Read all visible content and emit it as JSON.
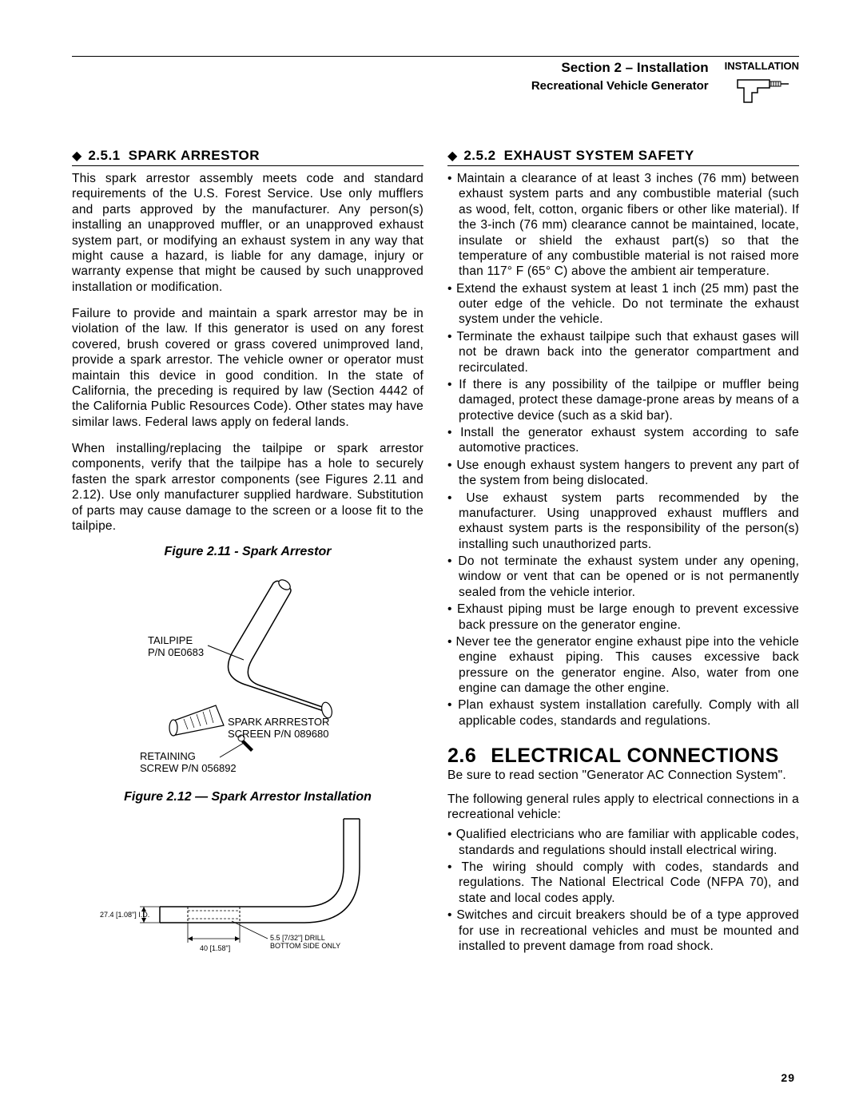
{
  "header": {
    "section": "Section 2 – Installation",
    "subtitle": "Recreational Vehicle Generator",
    "icon_label": "INSTALLATION"
  },
  "left": {
    "sub1_num": "2.5.1",
    "sub1_title": "SPARK ARRESTOR",
    "p1": "This spark arrestor assembly meets code and standard requirements of the U.S. Forest Service. Use only mufflers and parts approved by the manufacturer. Any person(s) installing an unapproved muffler, or an unapproved exhaust system part, or modifying an exhaust system in any way that might cause a hazard, is liable for any damage, injury or warranty expense that might be caused by such unapproved installation or modification.",
    "p2": "Failure to provide and maintain a spark arrestor may be in violation of the law. If this generator is used on any forest covered, brush covered or grass covered unimproved land, provide a spark arrestor. The vehicle owner or operator must maintain this device in good condition. In the state of California, the preceding is required by law (Section 4442 of the California Public Resources Code). Other states may have similar laws. Federal laws apply on federal lands.",
    "p3": "When installing/replacing the tailpipe or spark arrestor components, verify that the tailpipe has a hole to securely fasten the spark arrestor components (see Figures 2.11 and 2.12). Use only manufacturer supplied hardware. Substitution of parts may cause damage to the screen or a loose fit to the tailpipe.",
    "fig1_caption": "Figure 2.11 - Spark Arrestor",
    "fig1_labels": {
      "tailpipe": "TAILPIPE",
      "tailpipe_pn": "P/N 0E0683",
      "arrestor": "SPARK ARRRESTOR",
      "arrestor_pn": "SCREEN P/N 089680",
      "screw": "RETAINING",
      "screw_pn": "SCREW P/N 056892"
    },
    "fig2_caption": "Figure 2.12 — Spark Arrestor Installation",
    "fig2_labels": {
      "id": "27.4 [1.08\"] I.D.",
      "len": "40 [1.58\"]",
      "drill": "5.5 [7/32\"] DRILL\nBOTTOM SIDE ONLY"
    }
  },
  "right": {
    "sub2_num": "2.5.2",
    "sub2_title": "EXHAUST SYSTEM SAFETY",
    "bullets1": [
      "Maintain a clearance of at least 3 inches (76 mm) between exhaust system parts and any combustible material (such as wood, felt, cotton, organic fibers or other like material). If the 3-inch (76 mm) clearance cannot be maintained, locate, insulate or shield the exhaust part(s) so that the temperature of any combustible material is not raised more than 117° F (65° C) above the ambient air temperature.",
      "Extend the exhaust system at least 1 inch (25 mm) past the outer edge of the vehicle. Do not terminate the exhaust system under the vehicle.",
      "Terminate the exhaust tailpipe such that exhaust gases will not be drawn back into the generator compartment and recirculated.",
      "If there is any possibility of the tailpipe or muffler being damaged, protect these damage-prone areas by means of a protective device (such as a skid bar).",
      "Install the generator exhaust system according to safe automotive practices.",
      "Use enough exhaust system hangers to prevent any part of the system from being dislocated.",
      "Use exhaust system parts recommended by the manufacturer. Using unapproved exhaust mufflers and exhaust system parts is the responsibility of the person(s) installing such unauthorized parts.",
      "Do not terminate the exhaust system under any opening, window or vent that can be opened or is not permanently sealed from the vehicle interior.",
      "Exhaust piping must be large enough to prevent excessive back pressure on the generator engine.",
      "Never tee the generator engine exhaust pipe into the vehicle engine exhaust piping. This causes excessive back pressure on the generator engine. Also, water from one engine can damage the other engine.",
      "Plan exhaust system installation carefully. Comply with all applicable codes, standards and regulations."
    ],
    "head2_num": "2.6",
    "head2_title": "ELECTRICAL CONNECTIONS",
    "p4": "Be sure to read section \"Generator AC Connection System\".",
    "p5": "The following general rules apply to electrical connections in a recreational vehicle:",
    "bullets2": [
      "Qualified electricians who are familiar with applicable codes, standards and regulations should install electrical wiring.",
      "The wiring should comply with codes, standards and regulations. The National Electrical Code (NFPA 70), and state and local codes apply.",
      "Switches and circuit breakers should be of a type approved for use in recreational vehicles and must be mounted and installed to prevent damage from road shock."
    ]
  },
  "page_number": "29"
}
